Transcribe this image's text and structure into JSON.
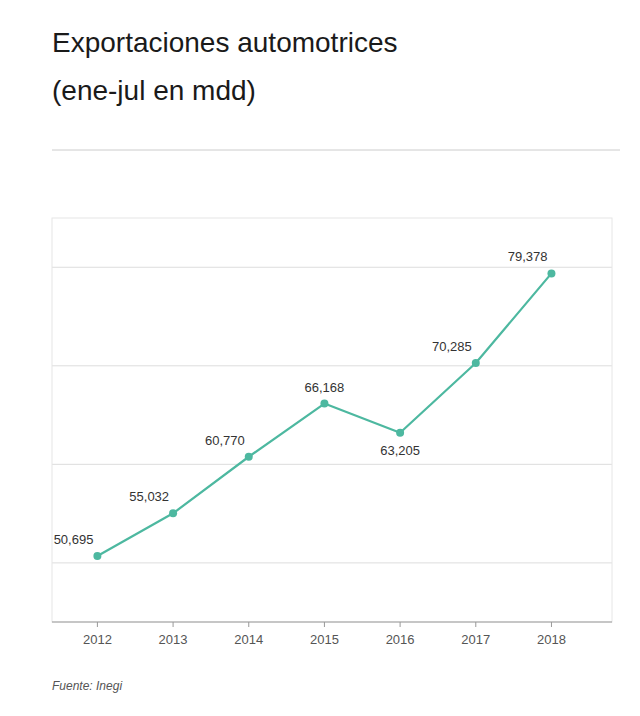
{
  "chart_data": {
    "type": "line",
    "title": "Exportaciones automotrices",
    "subtitle": "(ene-jul en mdd)",
    "x": [
      2012,
      2013,
      2014,
      2015,
      2016,
      2017,
      2018
    ],
    "values": [
      50695,
      55032,
      60770,
      66168,
      63205,
      70285,
      79378
    ],
    "value_labels": [
      "50,695",
      "55,032",
      "60,770",
      "66,168",
      "63,205",
      "70,285",
      "79,378"
    ],
    "data_labels": true,
    "color": "#4db8a0",
    "marker": "circle",
    "xlim": [
      2011.4,
      2018.8
    ],
    "xticks": [
      2012,
      2013,
      2014,
      2015,
      2016,
      2017,
      2018
    ],
    "ylim": [
      44000,
      85000
    ],
    "yticks": [
      50000,
      60000,
      70000,
      80000
    ],
    "grid": true,
    "tick_labels": "x",
    "annotations": [
      "Fuente: Inegi"
    ]
  }
}
